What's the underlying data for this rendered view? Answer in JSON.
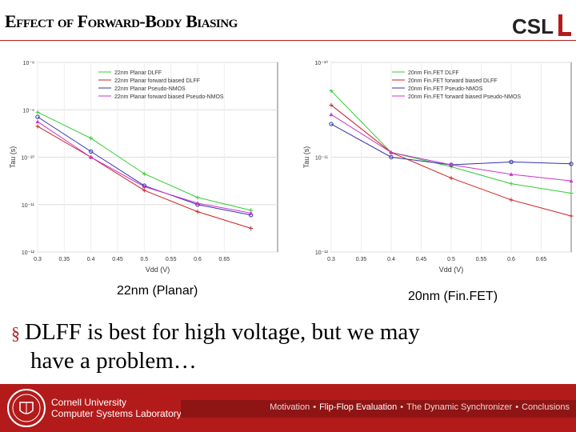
{
  "slide": {
    "title": "Effect of Forward-Body Biasing",
    "logo_text": "CSL",
    "bullet_line1": "DLFF is best for high voltage, but we may",
    "bullet_line2": "have a problem…",
    "bullet_marker": "§"
  },
  "captions": {
    "left": "22nm (Planar)",
    "right": "20nm (Fin.FET)"
  },
  "footer": {
    "org_line1": "Cornell University",
    "org_line2": "Computer Systems Laboratory",
    "breadcrumb": [
      {
        "label": "Motivation",
        "active": false
      },
      {
        "label": "Flip-Flop Evaluation",
        "active": true
      },
      {
        "label": "The Dynamic Synchronizer",
        "active": false
      },
      {
        "label": "Conclusions",
        "active": false
      }
    ],
    "separator": "•"
  },
  "colors": {
    "accent": "#b31b1b",
    "green": "#33cc33",
    "red": "#cc2222",
    "blue": "#3333aa",
    "magenta": "#cc33cc"
  },
  "chart_data": [
    {
      "type": "line",
      "xlabel": "Vdd (V)",
      "ylabel": "Tau (s)",
      "log_y": true,
      "xlim": [
        0.3,
        0.75
      ],
      "ylim_exp": [
        -12,
        -8
      ],
      "x_ticks": [
        "0.3",
        "0.35",
        "0.4",
        "0.45",
        "0.5",
        "0.55",
        "0.6",
        "0.65"
      ],
      "y_ticks": [
        "10⁻¹²",
        "10⁻¹¹",
        "10⁻¹⁰",
        "10⁻⁹",
        "10⁻⁸"
      ],
      "x": [
        0.3,
        0.4,
        0.5,
        0.6,
        0.7
      ],
      "series": [
        {
          "name": "22nm Planar DLFF",
          "color": "#33cc33",
          "log_values": [
            -9.05,
            -9.6,
            -10.35,
            -10.85,
            -11.12
          ]
        },
        {
          "name": "22nm Planar forward biased DLFF",
          "color": "#cc2222",
          "log_values": [
            -9.35,
            -10.0,
            -10.7,
            -11.15,
            -11.5
          ]
        },
        {
          "name": "22nm Planar Pseudo-NMOS",
          "color": "#3333aa",
          "log_values": [
            -9.15,
            -9.88,
            -10.6,
            -11.0,
            -11.22
          ]
        },
        {
          "name": "22nm Planar forward biased Pseudo-NMOS",
          "color": "#cc33cc",
          "log_values": [
            -9.25,
            -10.0,
            -10.62,
            -10.97,
            -11.18
          ]
        }
      ]
    },
    {
      "type": "line",
      "xlabel": "Vdd (V)",
      "ylabel": "Tau (s)",
      "log_y": true,
      "xlim": [
        0.3,
        0.7
      ],
      "ylim_exp": [
        -12,
        -10
      ],
      "x_ticks": [
        "0.3",
        "0.35",
        "0.4",
        "0.45",
        "0.5",
        "0.55",
        "0.6",
        "0.65"
      ],
      "y_ticks": [
        "10⁻¹²",
        "10⁻¹¹",
        "10⁻¹⁰"
      ],
      "x": [
        0.3,
        0.4,
        0.5,
        0.6,
        0.7
      ],
      "series": [
        {
          "name": "20nm Fin.FET DLFF",
          "color": "#33cc33",
          "log_values": [
            -10.3,
            -10.95,
            -11.1,
            -11.28,
            -11.38
          ]
        },
        {
          "name": "20nm Fin.FET forward biased DLFF",
          "color": "#cc2222",
          "log_values": [
            -10.45,
            -10.95,
            -11.22,
            -11.45,
            -11.62
          ]
        },
        {
          "name": "20nm Fin.FET Pseudo-NMOS",
          "color": "#3333aa",
          "log_values": [
            -10.65,
            -11.0,
            -11.08,
            -11.05,
            -11.07
          ]
        },
        {
          "name": "20nm Fin.FET forward biased Pseudo-NMOS",
          "color": "#cc33cc",
          "log_values": [
            -10.55,
            -10.95,
            -11.08,
            -11.18,
            -11.25
          ]
        }
      ]
    }
  ]
}
